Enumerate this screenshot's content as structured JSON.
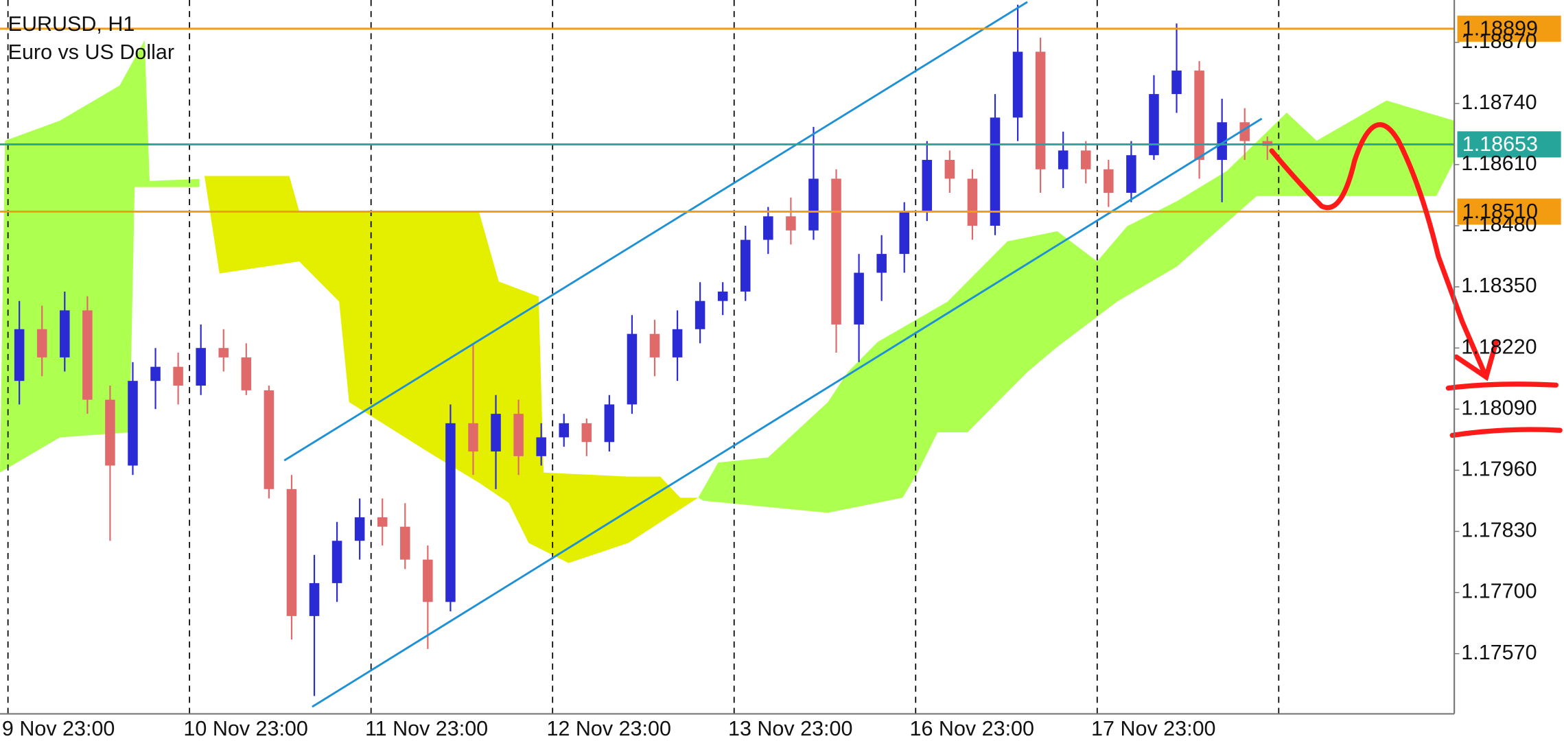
{
  "chart_data": {
    "type": "candlestick",
    "title": "EURUSD, H1",
    "subtitle": "Euro vs US Dollar",
    "categories": [
      "9 Nov 23:00",
      null,
      null,
      null,
      null,
      null,
      null,
      null,
      "10 Nov 23:00",
      null,
      null,
      null,
      null,
      null,
      null,
      null,
      "11 Nov 23:00",
      null,
      null,
      null,
      null,
      null,
      null,
      null,
      "12 Nov 23:00",
      null,
      null,
      null,
      null,
      null,
      null,
      null,
      "13 Nov 23:00",
      null,
      null,
      null,
      null,
      null,
      null,
      null,
      "16 Nov 23:00",
      null,
      null,
      null,
      null,
      null,
      null,
      null,
      "17 Nov 23:00",
      null,
      null,
      null,
      null,
      null,
      null,
      null
    ],
    "open": [
      1.1815,
      1.1826,
      1.182,
      1.183,
      1.1811,
      1.1797,
      1.1815,
      1.1818,
      1.1814,
      1.1822,
      1.182,
      1.1813,
      1.1792,
      1.1765,
      1.1772,
      1.1781,
      1.1786,
      1.1784,
      1.1777,
      1.1768,
      1.1806,
      1.18,
      1.1808,
      1.1799,
      1.1803,
      1.1806,
      1.1802,
      1.181,
      1.1825,
      1.182,
      1.1826,
      1.1832,
      1.1834,
      1.1845,
      1.185,
      1.1847,
      1.1858,
      1.1827,
      1.1838,
      1.1842,
      1.1851,
      1.1862,
      1.1858,
      1.1848,
      1.1871,
      1.1885,
      1.186,
      1.1864,
      1.186,
      1.1855,
      1.1863,
      1.1876,
      1.1881,
      1.1862,
      1.187,
      1.1866
    ],
    "high": [
      1.1832,
      1.1831,
      1.1834,
      1.1833,
      1.1814,
      1.1819,
      1.1822,
      1.1821,
      1.1827,
      1.1826,
      1.1823,
      1.1814,
      1.1795,
      1.1778,
      1.1785,
      1.179,
      1.179,
      1.1789,
      1.178,
      1.181,
      1.1823,
      1.1812,
      1.1811,
      1.1806,
      1.1808,
      1.1807,
      1.1812,
      1.1829,
      1.1828,
      1.183,
      1.1836,
      1.1836,
      1.1848,
      1.1852,
      1.1854,
      1.1869,
      1.186,
      1.1842,
      1.1846,
      1.1853,
      1.1866,
      1.1864,
      1.186,
      1.1876,
      1.1895,
      1.1888,
      1.1868,
      1.1866,
      1.1862,
      1.1866,
      1.188,
      1.1891,
      1.1883,
      1.1875,
      1.1873,
      1.1867
    ],
    "low": [
      1.181,
      1.1816,
      1.1817,
      1.1808,
      1.1781,
      1.1795,
      1.1809,
      1.181,
      1.1812,
      1.1817,
      1.1812,
      1.179,
      1.176,
      1.1748,
      1.1768,
      1.1777,
      1.178,
      1.1775,
      1.1758,
      1.1766,
      1.1795,
      1.1792,
      1.1795,
      1.1797,
      1.1801,
      1.1799,
      1.18,
      1.1808,
      1.1816,
      1.1815,
      1.1823,
      1.1829,
      1.1832,
      1.1842,
      1.1844,
      1.1845,
      1.1821,
      1.1819,
      1.1832,
      1.1838,
      1.1849,
      1.1855,
      1.1845,
      1.1846,
      1.1866,
      1.1855,
      1.1856,
      1.1857,
      1.1852,
      1.1853,
      1.1862,
      1.1872,
      1.1858,
      1.1853,
      1.1862,
      1.1862
    ],
    "close": [
      1.1826,
      1.182,
      1.183,
      1.1811,
      1.1797,
      1.1815,
      1.1818,
      1.1814,
      1.1822,
      1.182,
      1.1813,
      1.1792,
      1.1765,
      1.1772,
      1.1781,
      1.1786,
      1.1784,
      1.1777,
      1.1768,
      1.1806,
      1.18,
      1.1808,
      1.1799,
      1.1803,
      1.1806,
      1.1802,
      1.181,
      1.1825,
      1.182,
      1.1826,
      1.1832,
      1.1834,
      1.1845,
      1.185,
      1.1847,
      1.1858,
      1.1827,
      1.1838,
      1.1842,
      1.1851,
      1.1862,
      1.1858,
      1.1848,
      1.1871,
      1.1885,
      1.186,
      1.1864,
      1.186,
      1.1855,
      1.1863,
      1.1876,
      1.1881,
      1.1862,
      1.187,
      1.1866,
      1.1865
    ],
    "up_color": "#2b2bd6",
    "down_color": "#e06a6a",
    "ylim": [
      1.17442,
      1.1896
    ],
    "yticks": [
      {
        "value": 1.1757,
        "label": "1.17570"
      },
      {
        "value": 1.177,
        "label": "1.17700"
      },
      {
        "value": 1.1783,
        "label": "1.17830"
      },
      {
        "value": 1.1796,
        "label": "1.17960"
      },
      {
        "value": 1.1809,
        "label": "1.18090"
      },
      {
        "value": 1.1822,
        "label": "1.18220"
      },
      {
        "value": 1.1835,
        "label": "1.18350"
      },
      {
        "value": 1.1848,
        "label": "1.18480"
      },
      {
        "value": 1.1861,
        "label": "1.18610"
      },
      {
        "value": 1.1874,
        "label": "1.18740"
      },
      {
        "value": 1.1887,
        "label": "1.18870"
      }
    ],
    "levels": [
      {
        "value": 1.18899,
        "label": "1.18899",
        "color": "#f39c12"
      },
      {
        "value": 1.18653,
        "label": "1.18653",
        "color": "#26a69a"
      },
      {
        "value": 1.1851,
        "label": "1.18510",
        "color": "#f39c12"
      }
    ]
  }
}
